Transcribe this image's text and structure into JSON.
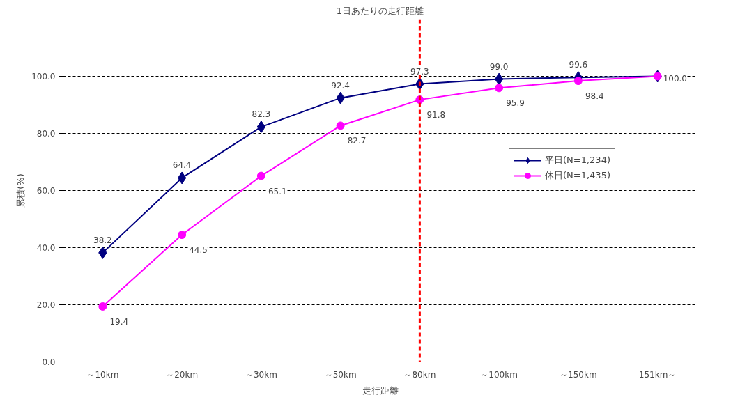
{
  "chart_data": {
    "type": "line",
    "title": "1日あたりの走行距離",
    "xlabel": "走行距離",
    "ylabel": "累積(%)",
    "categories": [
      "～10km",
      "～20km",
      "～30km",
      "～50km",
      "～80km",
      "～100km",
      "～150km",
      "151km～"
    ],
    "series": [
      {
        "name": "平日(N=1,234)",
        "color": "#000080",
        "marker": "diamond",
        "values": [
          38.2,
          64.4,
          82.3,
          92.4,
          97.3,
          99.0,
          99.6,
          100.0
        ],
        "value_labels": [
          "38.2",
          "64.4",
          "82.3",
          "92.4",
          "97.3",
          "99.0",
          "99.6",
          null
        ]
      },
      {
        "name": "休日(N=1,435)",
        "color": "#ff00ff",
        "marker": "circle",
        "values": [
          19.4,
          44.5,
          65.1,
          82.7,
          91.8,
          95.9,
          98.4,
          100.0
        ],
        "value_labels": [
          "19.4",
          "44.5",
          "65.1",
          "82.7",
          "91.8",
          "95.9",
          "98.4",
          "100.0"
        ]
      }
    ],
    "ylim": [
      0,
      120
    ],
    "yticks": [
      {
        "value": 0,
        "label": "0.0"
      },
      {
        "value": 20,
        "label": "20.0"
      },
      {
        "value": 40,
        "label": "40.0"
      },
      {
        "value": 60,
        "label": "60.0"
      },
      {
        "value": 80,
        "label": "80.0"
      },
      {
        "value": 100,
        "label": "100.0"
      }
    ],
    "grid": "y",
    "legend": "right",
    "line_style": "solid",
    "ref_lines": [
      {
        "axis": "x",
        "value": "～80km",
        "color": "#ff0000",
        "line_style": "dashed"
      }
    ]
  }
}
